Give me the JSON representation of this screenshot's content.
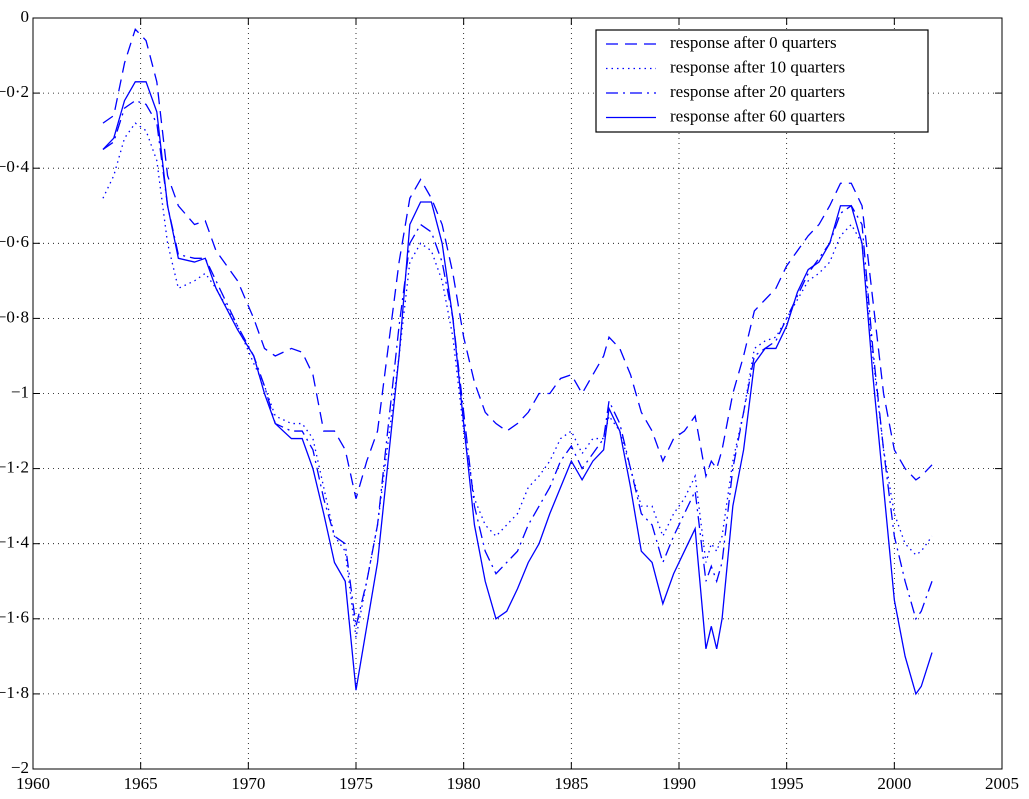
{
  "chart_data": {
    "type": "line",
    "x": [
      1963.25,
      1963.75,
      1964.25,
      1964.75,
      1965.25,
      1965.75,
      1966.25,
      1966.75,
      1967.5,
      1968,
      1968.5,
      1969.5,
      1970.25,
      1970.75,
      1971.25,
      1972,
      1972.5,
      1973,
      1973.5,
      1974,
      1974.5,
      1975,
      1975.5,
      1976,
      1977,
      1977.5,
      1978,
      1978.5,
      1979,
      1979.5,
      1980,
      1980.5,
      1981,
      1981.5,
      1982,
      1982.5,
      1983,
      1983.5,
      1984,
      1984.5,
      1985,
      1985.5,
      1986,
      1986.5,
      1986.75,
      1987.25,
      1987.75,
      1988.25,
      1988.75,
      1989.25,
      1989.75,
      1990.25,
      1990.75,
      1991.25,
      1991.5,
      1991.75,
      1992,
      1992.5,
      1993,
      1993.5,
      1994,
      1994.5,
      1995,
      1995.5,
      1996,
      1996.5,
      1997,
      1997.5,
      1998,
      1998.5,
      1999,
      1999.5,
      2000,
      2000.5,
      2001,
      2001.25,
      2001.75
    ],
    "series": [
      {
        "name": "response after 0 quarters",
        "color": "#0000ff",
        "linestyle": "dashed",
        "values": [
          -0.28,
          -0.26,
          -0.12,
          -0.03,
          -0.06,
          -0.17,
          -0.42,
          -0.5,
          -0.55,
          -0.54,
          -0.62,
          -0.7,
          -0.8,
          -0.88,
          -0.9,
          -0.88,
          -0.89,
          -0.95,
          -1.1,
          -1.1,
          -1.15,
          -1.28,
          -1.18,
          -1.1,
          -0.65,
          -0.48,
          -0.43,
          -0.48,
          -0.55,
          -0.68,
          -0.85,
          -0.97,
          -1.05,
          -1.08,
          -1.1,
          -1.08,
          -1.05,
          -1.0,
          -1.0,
          -0.96,
          -0.95,
          -1.0,
          -0.95,
          -0.9,
          -0.85,
          -0.88,
          -0.95,
          -1.05,
          -1.1,
          -1.18,
          -1.12,
          -1.1,
          -1.06,
          -1.22,
          -1.18,
          -1.2,
          -1.15,
          -1.0,
          -0.9,
          -0.78,
          -0.75,
          -0.72,
          -0.66,
          -0.62,
          -0.58,
          -0.55,
          -0.5,
          -0.44,
          -0.44,
          -0.5,
          -0.75,
          -1.0,
          -1.15,
          -1.2,
          -1.23,
          -1.22,
          -1.19
        ]
      },
      {
        "name": "response after 10 quarters",
        "color": "#0000ff",
        "linestyle": "dotted",
        "values": [
          -0.48,
          -0.42,
          -0.32,
          -0.28,
          -0.3,
          -0.38,
          -0.6,
          -0.72,
          -0.7,
          -0.68,
          -0.72,
          -0.82,
          -0.92,
          -0.98,
          -1.06,
          -1.08,
          -1.08,
          -1.12,
          -1.25,
          -1.38,
          -1.42,
          -1.65,
          -1.5,
          -1.35,
          -0.9,
          -0.65,
          -0.6,
          -0.62,
          -0.7,
          -0.85,
          -1.1,
          -1.28,
          -1.35,
          -1.38,
          -1.35,
          -1.32,
          -1.25,
          -1.22,
          -1.18,
          -1.12,
          -1.1,
          -1.16,
          -1.12,
          -1.12,
          -1.06,
          -1.1,
          -1.2,
          -1.3,
          -1.3,
          -1.38,
          -1.32,
          -1.28,
          -1.22,
          -1.45,
          -1.4,
          -1.42,
          -1.38,
          -1.18,
          -1.05,
          -0.88,
          -0.86,
          -0.85,
          -0.8,
          -0.75,
          -0.7,
          -0.68,
          -0.65,
          -0.58,
          -0.55,
          -0.6,
          -0.9,
          -1.15,
          -1.32,
          -1.4,
          -1.43,
          -1.42,
          -1.38
        ]
      },
      {
        "name": "response after 20 quarters",
        "color": "#0000ff",
        "linestyle": "dashdot",
        "values": [
          -0.35,
          -0.33,
          -0.24,
          -0.22,
          -0.23,
          -0.28,
          -0.5,
          -0.63,
          -0.64,
          -0.64,
          -0.7,
          -0.82,
          -0.9,
          -0.98,
          -1.08,
          -1.1,
          -1.1,
          -1.15,
          -1.28,
          -1.38,
          -1.4,
          -1.62,
          -1.5,
          -1.35,
          -0.82,
          -0.6,
          -0.55,
          -0.57,
          -0.65,
          -0.8,
          -1.05,
          -1.3,
          -1.42,
          -1.48,
          -1.45,
          -1.42,
          -1.35,
          -1.3,
          -1.25,
          -1.18,
          -1.14,
          -1.2,
          -1.16,
          -1.12,
          -1.02,
          -1.08,
          -1.2,
          -1.32,
          -1.35,
          -1.45,
          -1.38,
          -1.32,
          -1.26,
          -1.5,
          -1.46,
          -1.5,
          -1.45,
          -1.2,
          -1.05,
          -0.9,
          -0.88,
          -0.86,
          -0.8,
          -0.74,
          -0.68,
          -0.64,
          -0.6,
          -0.52,
          -0.5,
          -0.55,
          -0.88,
          -1.15,
          -1.38,
          -1.5,
          -1.6,
          -1.58,
          -1.5
        ]
      },
      {
        "name": "response after 60 quarters",
        "color": "#0000ff",
        "linestyle": "solid",
        "values": [
          -0.35,
          -0.32,
          -0.22,
          -0.17,
          -0.17,
          -0.25,
          -0.5,
          -0.64,
          -0.65,
          -0.64,
          -0.72,
          -0.83,
          -0.9,
          -1.0,
          -1.08,
          -1.12,
          -1.12,
          -1.2,
          -1.32,
          -1.45,
          -1.5,
          -1.79,
          -1.62,
          -1.45,
          -0.9,
          -0.55,
          -0.49,
          -0.49,
          -0.6,
          -0.8,
          -1.08,
          -1.35,
          -1.5,
          -1.6,
          -1.58,
          -1.52,
          -1.45,
          -1.4,
          -1.32,
          -1.25,
          -1.18,
          -1.23,
          -1.18,
          -1.15,
          -1.04,
          -1.1,
          -1.25,
          -1.42,
          -1.45,
          -1.56,
          -1.48,
          -1.42,
          -1.36,
          -1.68,
          -1.62,
          -1.68,
          -1.6,
          -1.3,
          -1.15,
          -0.92,
          -0.88,
          -0.88,
          -0.82,
          -0.73,
          -0.67,
          -0.65,
          -0.6,
          -0.5,
          -0.5,
          -0.6,
          -0.95,
          -1.25,
          -1.55,
          -1.7,
          -1.8,
          -1.78,
          -1.69
        ]
      }
    ],
    "xlim": [
      1960,
      2005
    ],
    "xticks": [
      1960,
      1965,
      1970,
      1975,
      1980,
      1985,
      1990,
      1995,
      2000,
      2005
    ],
    "ylim": [
      -2,
      0
    ],
    "yticks": [
      {
        "value": -2,
        "label": "−2"
      },
      {
        "value": -1.8,
        "label": "−1·8"
      },
      {
        "value": -1.6,
        "label": "−1·6"
      },
      {
        "value": -1.4,
        "label": "−1·4"
      },
      {
        "value": -1.2,
        "label": "−1·2"
      },
      {
        "value": -1,
        "label": "−1"
      },
      {
        "value": -0.8,
        "label": "−0·8"
      },
      {
        "value": -0.6,
        "label": "−0·6"
      },
      {
        "value": -0.4,
        "label": "−0·4"
      },
      {
        "value": -0.2,
        "label": "−0·2"
      },
      0
    ],
    "grid": true,
    "legend": "upper right"
  }
}
